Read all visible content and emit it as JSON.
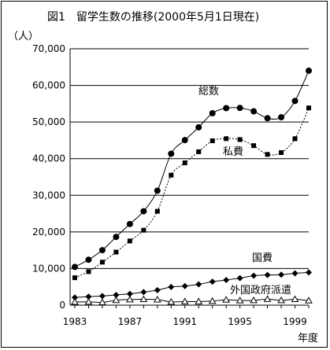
{
  "chart_data": {
    "type": "line",
    "title": "図1　留学生数の推移(2000年5月1日現在)",
    "ylabel": "（人）",
    "xlabel": "年度",
    "ylim": [
      0,
      70000
    ],
    "xlim": [
      1983,
      2000
    ],
    "yticks": [
      "0",
      "10,000",
      "20,000",
      "30,000",
      "40,000",
      "50,000",
      "60,000",
      "70,000"
    ],
    "xticks": [
      "1983",
      "1987",
      "1991",
      "1995",
      "1999"
    ],
    "grid": true,
    "x": [
      1983,
      1984,
      1985,
      1986,
      1987,
      1988,
      1989,
      1990,
      1991,
      1992,
      1993,
      1994,
      1995,
      1996,
      1997,
      1998,
      1999,
      2000
    ],
    "series": [
      {
        "name": "総数",
        "marker": "circle",
        "line": "solid",
        "values": [
          10428,
          12410,
          15009,
          18631,
          22154,
          25643,
          31251,
          41347,
          45066,
          48561,
          52405,
          53787,
          53847,
          52921,
          51047,
          51298,
          55755,
          64011
        ]
      },
      {
        "name": "私費",
        "marker": "square",
        "line": "dotted",
        "values": [
          7492,
          9157,
          11743,
          14496,
          17522,
          20463,
          25625,
          35492,
          38854,
          41883,
          44875,
          45455,
          45209,
          43556,
          41161,
          41657,
          45445,
          53847
        ]
      },
      {
        "name": "国費",
        "marker": "diamond",
        "line": "solid",
        "values": [
          2082,
          2345,
          2502,
          2799,
          3092,
          3561,
          4118,
          4961,
          5219,
          5699,
          6408,
          6880,
          7371,
          8051,
          8250,
          8323,
          8706,
          8930
        ]
      },
      {
        "name": "外国政府派遣",
        "marker": "triangle",
        "line": "solid",
        "values": [
          854,
          908,
          764,
          1336,
          1540,
          1619,
          1508,
          894,
          993,
          979,
          1122,
          1452,
          1267,
          1314,
          1636,
          1318,
          1604,
          1234
        ]
      }
    ]
  }
}
